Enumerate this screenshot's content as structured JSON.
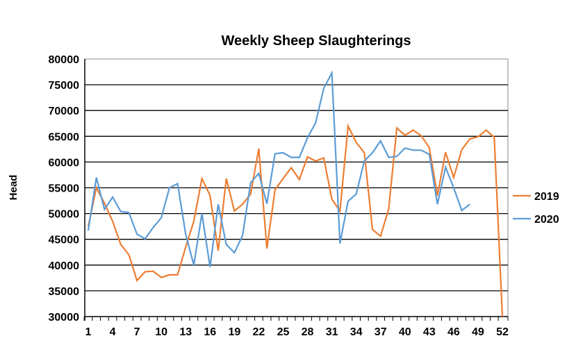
{
  "chart_data": {
    "type": "line",
    "title": "Weekly Sheep Slaughterings",
    "xlabel": "",
    "ylabel": "Head",
    "ylim": [
      30000,
      80000
    ],
    "yticks": [
      30000,
      35000,
      40000,
      45000,
      50000,
      55000,
      60000,
      65000,
      70000,
      75000,
      80000
    ],
    "xlim": [
      1,
      52
    ],
    "xticks": [
      1,
      4,
      7,
      10,
      13,
      16,
      19,
      22,
      25,
      28,
      31,
      34,
      37,
      40,
      43,
      46,
      49,
      52
    ],
    "grid": true,
    "legend": "right",
    "series": [
      {
        "name": "2019",
        "color": "#ED7D31",
        "x": [
          1,
          2,
          3,
          4,
          5,
          6,
          7,
          8,
          9,
          10,
          11,
          12,
          13,
          14,
          15,
          16,
          17,
          18,
          19,
          20,
          21,
          22,
          23,
          24,
          25,
          26,
          27,
          28,
          29,
          30,
          31,
          32,
          33,
          34,
          35,
          36,
          37,
          38,
          39,
          40,
          41,
          42,
          43,
          44,
          45,
          46,
          47,
          48,
          49,
          50,
          51,
          52
        ],
        "values": [
          47500,
          55000,
          52000,
          48500,
          44000,
          42000,
          37000,
          38700,
          38800,
          37600,
          38100,
          38100,
          43500,
          48500,
          56800,
          53500,
          42800,
          56800,
          50500,
          51800,
          53800,
          62600,
          43200,
          54600,
          56800,
          58900,
          56600,
          61000,
          60200,
          60800,
          52800,
          50500,
          67000,
          63800,
          61800,
          46900,
          45600,
          50900,
          66600,
          65200,
          66200,
          65100,
          62800,
          53500,
          61900,
          57000,
          62400,
          64500,
          64900,
          66200,
          64800,
          30000
        ]
      },
      {
        "name": "2020",
        "color": "#5B9BD5",
        "x": [
          1,
          2,
          3,
          4,
          5,
          6,
          7,
          8,
          9,
          10,
          11,
          12,
          13,
          14,
          15,
          16,
          17,
          18,
          19,
          20,
          21,
          22,
          23,
          24,
          25,
          26,
          27,
          28,
          29,
          30,
          31,
          32,
          33,
          34,
          35,
          36,
          37,
          38,
          39,
          40,
          41,
          42,
          43,
          44,
          45,
          46,
          47,
          48
        ],
        "values": [
          46700,
          57000,
          50800,
          53200,
          50400,
          50200,
          46000,
          45100,
          47300,
          49200,
          55000,
          55800,
          46000,
          40000,
          50000,
          39600,
          51800,
          44000,
          42400,
          45700,
          56000,
          57800,
          51900,
          61600,
          61800,
          60900,
          60900,
          64700,
          67600,
          74300,
          77300,
          44200,
          52400,
          53800,
          60200,
          61800,
          64100,
          60900,
          61100,
          62700,
          62300,
          62300,
          61500,
          51800,
          59000,
          55000,
          50600,
          51800
        ]
      }
    ]
  }
}
